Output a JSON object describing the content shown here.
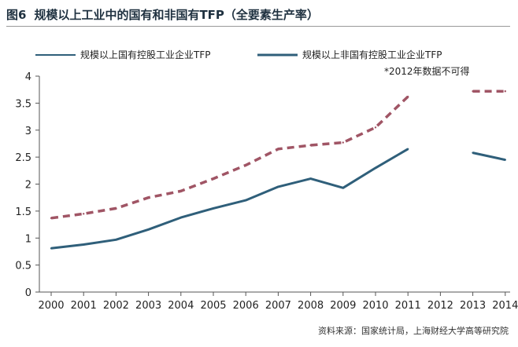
{
  "figure": {
    "label": "图6",
    "title": "规模以上工业中的国有和非国有TFP（全要素生产率）",
    "source": "资料来源：国家统计局，上海财经大学高等研究院",
    "note": "*2012年数据不可得"
  },
  "colors": {
    "state_owned": "#2f5f7a",
    "non_state": "#a05565",
    "axis": "#555555"
  },
  "chart_data": {
    "type": "line",
    "title": "规模以上工业中的国有和非国有TFP（全要素生产率）",
    "xlabel": "",
    "ylabel": "",
    "ylim": [
      0,
      4
    ],
    "yticks": [
      "0",
      "0.5",
      "1",
      "1.5",
      "2",
      "2.5",
      "3",
      "3.5",
      "4"
    ],
    "ytick_values": [
      0,
      0.5,
      1,
      1.5,
      2,
      2.5,
      3,
      3.5,
      4
    ],
    "grid": false,
    "legend": "top",
    "categories": [
      "2000",
      "2001",
      "2002",
      "2003",
      "2004",
      "2005",
      "2006",
      "2007",
      "2008",
      "2009",
      "2010",
      "2011",
      "2012",
      "2013",
      "2014"
    ],
    "series": [
      {
        "name": "规模以上国有控股工业企业TFP",
        "style": "solid",
        "values": [
          0.81,
          0.88,
          0.97,
          1.16,
          1.38,
          1.55,
          1.7,
          1.95,
          2.1,
          1.93,
          2.3,
          2.65,
          null,
          2.58,
          2.45
        ]
      },
      {
        "name": "规模以上非国有控股工业企业TFP",
        "style": "dashed",
        "values": [
          1.37,
          1.45,
          1.55,
          1.75,
          1.87,
          2.1,
          2.35,
          2.65,
          2.72,
          2.77,
          3.05,
          3.62,
          null,
          3.72,
          3.72
        ]
      }
    ]
  }
}
